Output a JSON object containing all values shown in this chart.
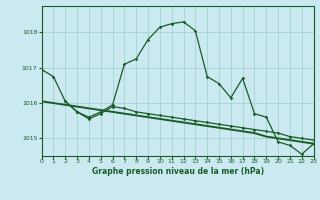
{
  "title": "Graphe pression niveau de la mer (hPa)",
  "bg_color": "#cbe9f0",
  "grid_color": "#9dcfcc",
  "line_color": "#1a5c28",
  "x_min": 0,
  "x_max": 23,
  "y_min": 1014.5,
  "y_max": 1018.75,
  "yticks": [
    1015,
    1016,
    1017,
    1018
  ],
  "xticks": [
    0,
    1,
    2,
    3,
    4,
    5,
    6,
    7,
    8,
    9,
    10,
    11,
    12,
    13,
    14,
    15,
    16,
    17,
    18,
    19,
    20,
    21,
    22,
    23
  ],
  "s1_x": [
    0,
    1,
    2,
    3,
    4,
    5,
    6,
    7,
    8,
    9,
    10,
    11,
    12,
    13,
    14,
    15,
    16,
    17,
    18,
    19,
    20,
    21,
    22,
    23
  ],
  "s1_y": [
    1016.95,
    1016.75,
    1016.05,
    1015.75,
    1015.6,
    1015.75,
    1015.95,
    1017.1,
    1017.25,
    1017.8,
    1018.15,
    1018.25,
    1018.3,
    1018.05,
    1016.75,
    1016.55,
    1016.15,
    1016.7,
    1015.7,
    1015.6,
    1014.9,
    1014.8,
    1014.55,
    1014.85
  ],
  "s2_x": [
    2,
    3,
    4,
    5,
    6,
    7,
    8,
    9,
    10,
    11,
    12,
    13,
    14,
    15,
    16,
    17,
    18,
    19,
    20,
    21,
    22,
    23
  ],
  "s2_y": [
    1016.05,
    1015.75,
    1015.55,
    1015.7,
    1015.9,
    1015.85,
    1015.75,
    1015.7,
    1015.65,
    1015.6,
    1015.55,
    1015.5,
    1015.45,
    1015.4,
    1015.35,
    1015.3,
    1015.25,
    1015.2,
    1015.15,
    1015.05,
    1015.0,
    1014.95
  ],
  "s3_x": [
    0,
    1,
    2,
    3,
    4,
    5,
    6,
    7,
    8,
    9,
    10,
    11,
    12,
    13,
    14,
    15,
    16,
    17,
    18,
    19,
    20,
    21,
    22,
    23
  ],
  "s3_y": [
    1016.05,
    1016.0,
    1015.95,
    1015.9,
    1015.85,
    1015.8,
    1015.75,
    1015.7,
    1015.65,
    1015.6,
    1015.55,
    1015.5,
    1015.45,
    1015.4,
    1015.35,
    1015.3,
    1015.25,
    1015.2,
    1015.15,
    1015.05,
    1015.0,
    1014.95,
    1014.9,
    1014.85
  ]
}
